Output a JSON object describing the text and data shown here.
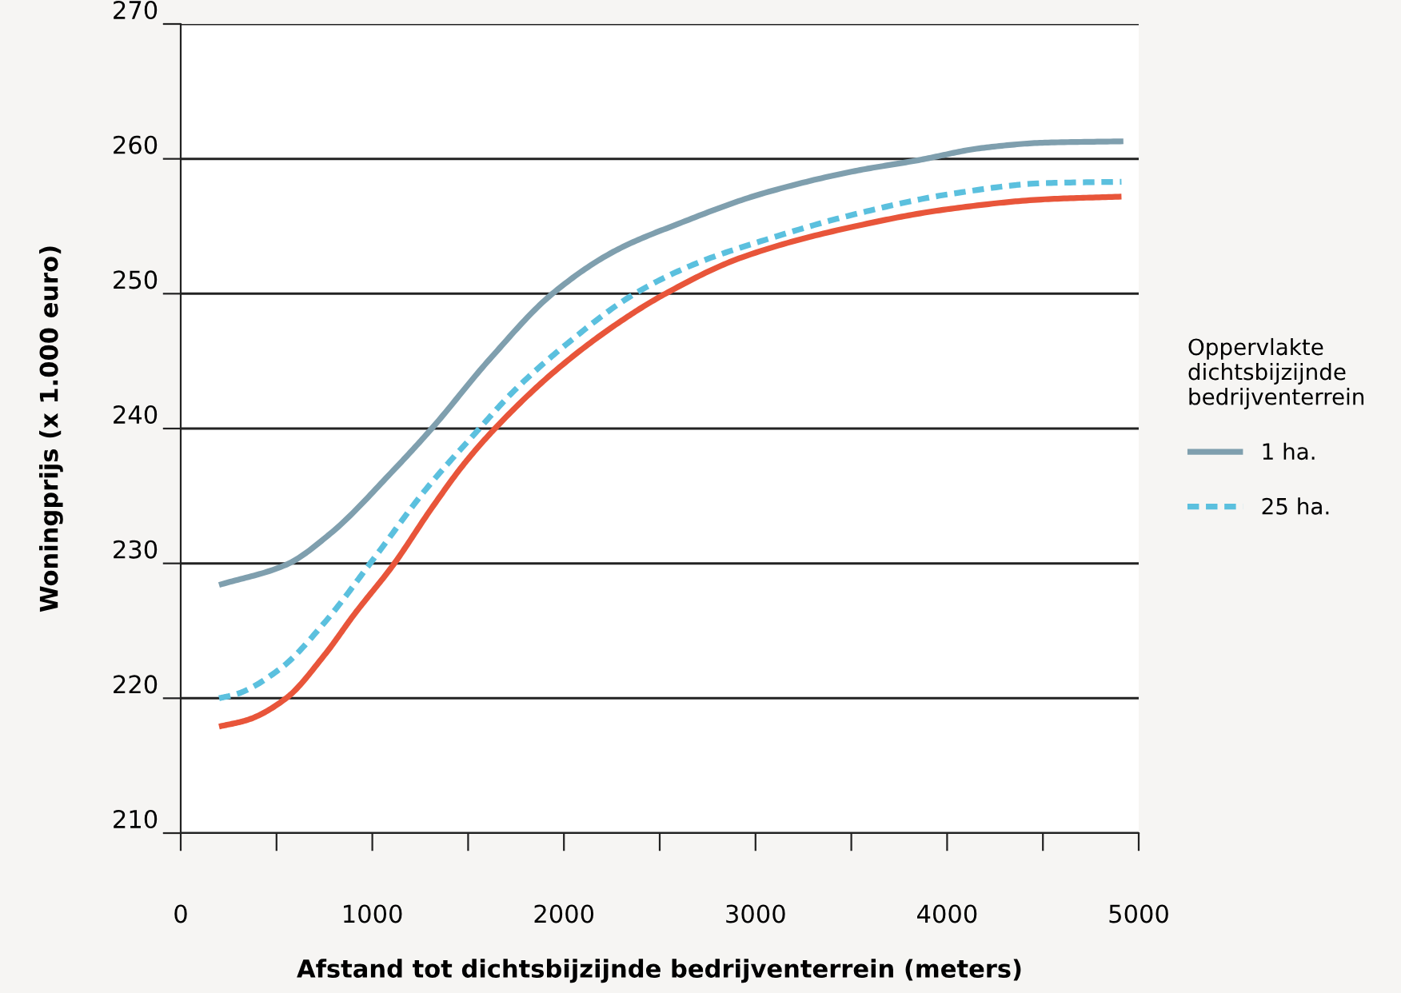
{
  "chart_data": {
    "type": "line",
    "xlabel": "Afstand tot dichtsbijzijnde bedrijventerrein (meters)",
    "ylabel": "Woningprijs (x 1.000 euro)",
    "legend_title": "Oppervlakte\ndichtsbijzijnde\nbedrijventerrein",
    "legend": "right",
    "grid": "y",
    "marker": "none",
    "xlim": [
      0,
      5000
    ],
    "xticks": [
      0,
      {
        "value": 500,
        "label": null
      },
      1000,
      {
        "value": 1500,
        "label": null
      },
      2000,
      {
        "value": 2500,
        "label": null
      },
      3000,
      {
        "value": 3500,
        "label": null
      },
      4000,
      {
        "value": 4500,
        "label": null
      },
      5000
    ],
    "ylim": [
      210,
      270
    ],
    "yticks": [
      210,
      220,
      230,
      240,
      250,
      260,
      270
    ],
    "series": [
      {
        "name": "1 ha.",
        "color": "#7f9fae",
        "line_style": "solid",
        "x": [
          200,
          550,
          780,
          1110,
          1310,
          1610,
          1940,
          2270,
          2600,
          3030,
          3520,
          3850,
          4180,
          4510,
          4920
        ],
        "values": [
          228.4,
          229.9,
          232.2,
          236.9,
          240,
          245.1,
          250,
          253.2,
          255.2,
          257.4,
          259.1,
          259.9,
          260.8,
          261.2,
          261.3
        ]
      },
      {
        "name": "25 ha.",
        "color": "#5bc0de",
        "line_style": "dashed",
        "x": [
          200,
          290,
          520,
          750,
          1010,
          1280,
          1540,
          1740,
          2000,
          2370,
          2700,
          3030,
          3520,
          4020,
          4510,
          4910
        ],
        "values": [
          220,
          220.3,
          222.2,
          225.6,
          230.4,
          235.5,
          239.7,
          242.8,
          246.1,
          250,
          252.3,
          253.9,
          255.9,
          257.4,
          258.2,
          258.3
        ]
      },
      {
        "color": "#e8553a",
        "line_style": "solid",
        "x": [
          200,
          350,
          550,
          750,
          910,
          1110,
          1310,
          1480,
          1640,
          1940,
          2270,
          2530,
          2930,
          3520,
          4020,
          4510,
          4910
        ],
        "values": [
          217.9,
          218.4,
          220,
          223.2,
          226.3,
          229.9,
          234.1,
          237.4,
          240,
          244.1,
          247.7,
          250,
          252.7,
          255,
          256.3,
          257,
          257.2
        ]
      }
    ]
  }
}
